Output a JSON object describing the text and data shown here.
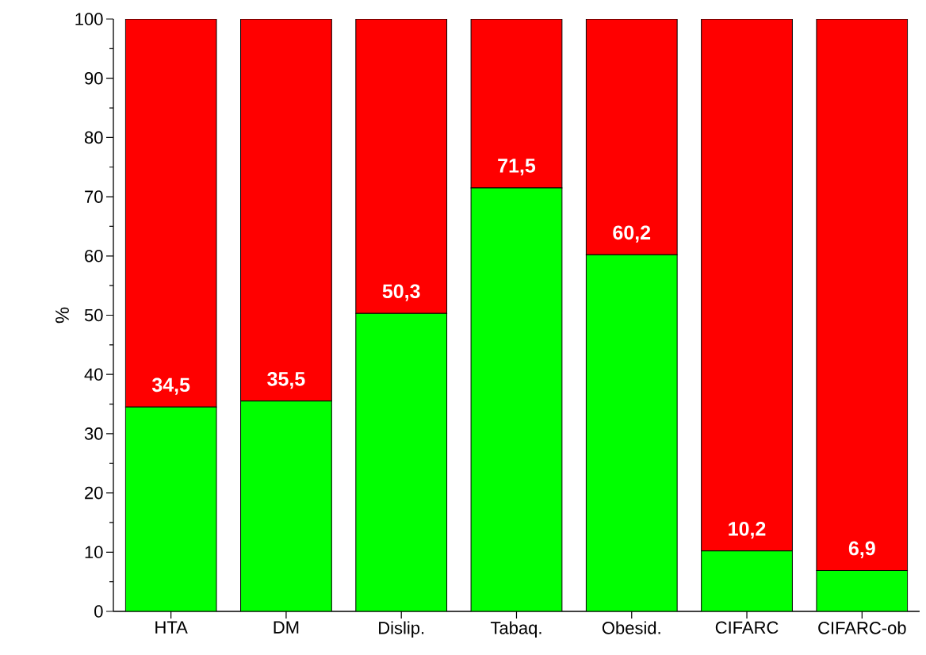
{
  "chart_data": {
    "type": "bar",
    "stacked": true,
    "ylabel": "%",
    "categories": [
      "HTA",
      "DM",
      "Dislip.",
      "Tabaq.",
      "Obesid.",
      "CIFARC",
      "CIFARC-ob"
    ],
    "series": [
      {
        "color": "#00ff00",
        "values": [
          34.5,
          35.5,
          50.3,
          71.5,
          60.2,
          10.2,
          6.9
        ],
        "value_labels": [
          "34,5",
          "35,5",
          "50,3",
          "71,5",
          "60,2",
          "10,2",
          "6,9"
        ]
      },
      {
        "color": "#ff0000",
        "values": [
          65.5,
          64.5,
          49.7,
          28.5,
          39.8,
          89.8,
          93.1
        ]
      }
    ],
    "ylim": [
      0,
      100
    ],
    "yticks": [
      0,
      10,
      20,
      30,
      40,
      50,
      60,
      70,
      80,
      90,
      100
    ]
  }
}
